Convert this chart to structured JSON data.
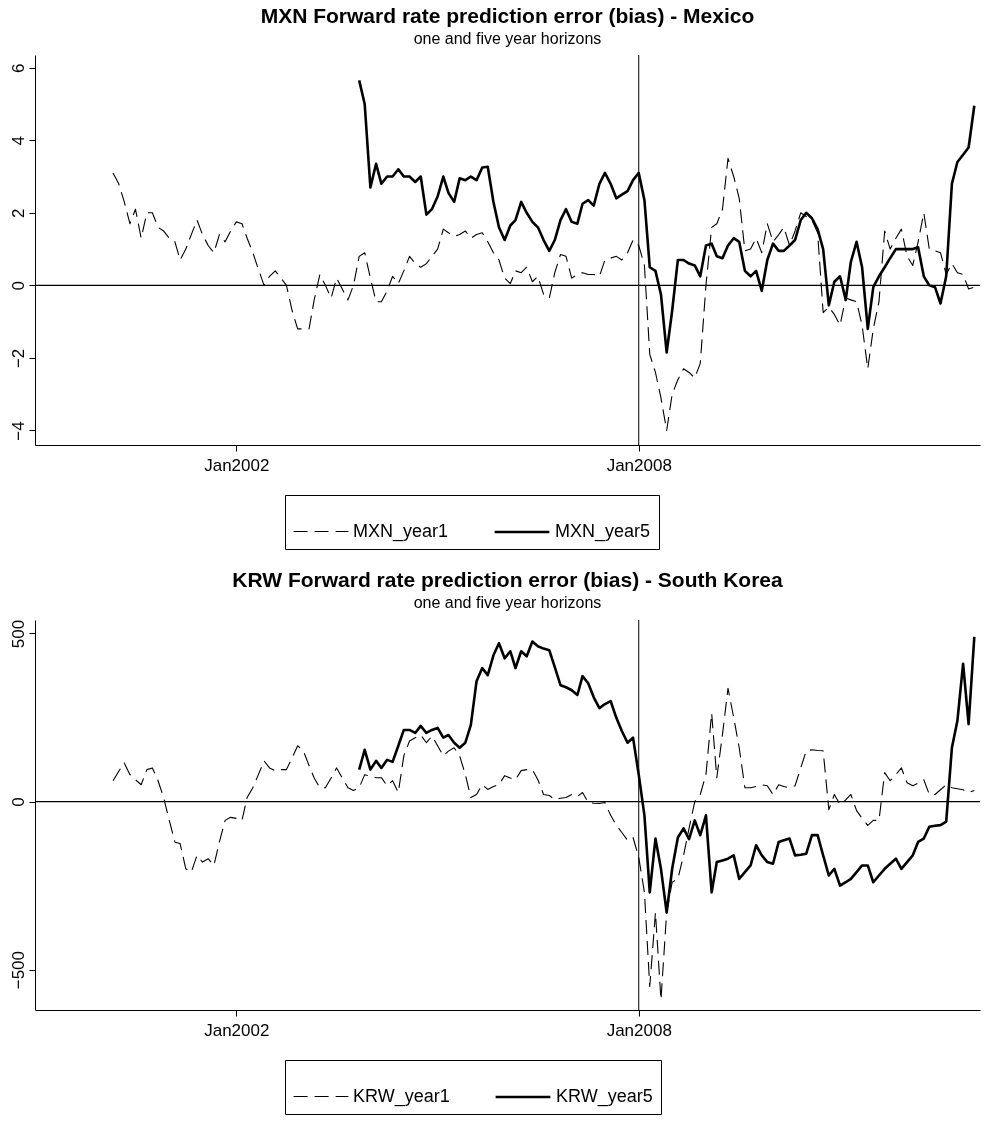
{
  "chart_data": [
    {
      "type": "line",
      "title": "MXN Forward rate prediction error (bias) - Mexico",
      "subtitle": "one and five year horizons",
      "x": [
        "2000-03",
        "2000-04",
        "2000-05",
        "2000-06",
        "2000-07",
        "2000-08",
        "2000-09",
        "2000-10",
        "2000-11",
        "2000-12",
        "2001-01",
        "2001-02",
        "2001-03",
        "2001-04",
        "2001-05",
        "2001-06",
        "2001-07",
        "2001-08",
        "2001-09",
        "2001-10",
        "2001-11",
        "2001-12",
        "2002-01",
        "2002-02",
        "2002-03",
        "2002-04",
        "2002-05",
        "2002-06",
        "2002-07",
        "2002-08",
        "2002-09",
        "2002-10",
        "2002-11",
        "2002-12",
        "2003-01",
        "2003-02",
        "2003-03",
        "2003-04",
        "2003-05",
        "2003-06",
        "2003-07",
        "2003-08",
        "2003-09",
        "2003-10",
        "2003-11",
        "2003-12",
        "2004-01",
        "2004-02",
        "2004-03",
        "2004-04",
        "2004-05",
        "2004-06",
        "2004-07",
        "2004-08",
        "2004-09",
        "2004-10",
        "2004-11",
        "2004-12",
        "2005-01",
        "2005-02",
        "2005-03",
        "2005-04",
        "2005-05",
        "2005-06",
        "2005-07",
        "2005-08",
        "2005-09",
        "2005-10",
        "2005-11",
        "2005-12",
        "2006-01",
        "2006-02",
        "2006-03",
        "2006-04",
        "2006-05",
        "2006-06",
        "2006-07",
        "2006-08",
        "2006-09",
        "2006-10",
        "2006-11",
        "2006-12",
        "2007-01",
        "2007-02",
        "2007-03",
        "2007-04",
        "2007-05",
        "2007-06",
        "2007-07",
        "2007-08",
        "2007-09",
        "2007-10",
        "2007-11",
        "2007-12",
        "2008-01",
        "2008-02",
        "2008-03",
        "2008-04",
        "2008-05",
        "2008-06",
        "2008-07",
        "2008-08",
        "2008-09",
        "2008-10",
        "2008-11",
        "2008-12",
        "2009-01",
        "2009-02",
        "2009-03",
        "2009-04",
        "2009-05",
        "2009-06",
        "2009-07",
        "2009-08",
        "2009-09",
        "2009-10",
        "2009-11",
        "2009-12",
        "2010-01",
        "2010-02",
        "2010-03",
        "2010-04",
        "2010-05",
        "2010-06",
        "2010-07",
        "2010-08",
        "2010-09",
        "2010-10",
        "2010-11",
        "2010-12",
        "2011-01",
        "2011-02",
        "2011-03",
        "2011-04",
        "2011-05",
        "2011-06",
        "2011-07",
        "2011-08",
        "2011-09",
        "2011-10",
        "2011-11",
        "2011-12",
        "2012-01",
        "2012-02",
        "2012-03",
        "2012-04",
        "2012-05",
        "2012-06",
        "2012-07",
        "2012-08",
        "2012-09",
        "2012-10",
        "2012-11",
        "2012-12",
        "2013-01"
      ],
      "xlim": [
        "1999-01",
        "2013-02"
      ],
      "xticks": [
        {
          "value": "2002-01",
          "label": "Jan2002"
        },
        {
          "value": "2008-01",
          "label": "Jan2008"
        }
      ],
      "ylim": [
        -4.4,
        6.35
      ],
      "yticks": [
        -4,
        -2,
        0,
        2,
        4,
        6
      ],
      "grid": false,
      "legend": "bottom",
      "ref_lines": [
        {
          "axis": "y",
          "value": 0
        },
        {
          "axis": "x",
          "value": "2008-01"
        }
      ],
      "series": [
        {
          "name": "MXN_year1",
          "color": "#000000",
          "line_style": "dashed",
          "values": [
            3.1,
            2.8,
            2.3,
            1.7,
            2.1,
            1.3,
            2.0,
            2.0,
            1.6,
            1.5,
            1.3,
            1.2,
            0.7,
            1.0,
            1.4,
            1.8,
            1.4,
            1.1,
            0.9,
            1.4,
            1.2,
            1.5,
            1.75,
            1.7,
            1.3,
            0.9,
            0.45,
            0.0,
            0.25,
            0.4,
            0.2,
            0,
            -0.7,
            -1.2,
            -1.2,
            -1.2,
            -0.4,
            0.3,
            0,
            -0.35,
            0.2,
            -0.1,
            -0.4,
            0,
            0.8,
            0.9,
            0.2,
            -0.45,
            -0.45,
            -0.15,
            0.25,
            0.05,
            0.4,
            0.8,
            0.6,
            0.5,
            0.6,
            0.8,
            1.0,
            1.55,
            1.45,
            1.35,
            1.4,
            1.5,
            1.3,
            1.4,
            1.45,
            1.2,
            0.9,
            0.7,
            0.2,
            0.05,
            0.4,
            0.35,
            0.5,
            0.1,
            0.25,
            -0.25,
            -0.35,
            0.35,
            0.85,
            0.8,
            0.2,
            0.3,
            0.35,
            0.3,
            0.3,
            0.25,
            0.7,
            0.75,
            0.8,
            0.7,
            0.9,
            1.25,
            1.1,
            0.55,
            -1.9,
            -2.4,
            -3.1,
            -4.0,
            -3.0,
            -2.6,
            -2.3,
            -2.4,
            -2.55,
            -2.15,
            0,
            1.6,
            1.7,
            2.1,
            3.5,
            3.0,
            2.4,
            0.95,
            1.0,
            1.3,
            0.9,
            1.7,
            1.2,
            1.4,
            1.6,
            1.1,
            1.5,
            2.0,
            1.9,
            1.8,
            1.45,
            -0.75,
            -0.6,
            -0.8,
            -1.1,
            -0.35,
            -0.4,
            -0.45,
            -1.1,
            -2.3,
            -1.2,
            -0.45,
            1.5,
            1.0,
            1.3,
            1.55,
            0.8,
            0.55,
            1.2,
            2.0,
            1.0,
            0.95,
            0.9,
            0.3,
            0.6,
            0.35,
            0.3,
            -0.1,
            -0.05
          ]
        },
        {
          "name": "MXN_year5",
          "color": "#000000",
          "line_style": "solid",
          "x": [
            "2003-11",
            "2003-12",
            "2004-01",
            "2004-02",
            "2004-03",
            "2004-04",
            "2004-05",
            "2004-06",
            "2004-07",
            "2004-08",
            "2004-09",
            "2004-10",
            "2004-11",
            "2004-12",
            "2005-01",
            "2005-02",
            "2005-03",
            "2005-04",
            "2005-05",
            "2005-06",
            "2005-07",
            "2005-08",
            "2005-09",
            "2005-10",
            "2005-11",
            "2005-12",
            "2006-01",
            "2006-02",
            "2006-03",
            "2006-04",
            "2006-05",
            "2006-06",
            "2006-07",
            "2006-08",
            "2006-09",
            "2006-10",
            "2006-11",
            "2006-12",
            "2007-01",
            "2007-02",
            "2007-03",
            "2007-04",
            "2007-05",
            "2007-06",
            "2007-07",
            "2007-08",
            "2007-09",
            "2007-10",
            "2007-11",
            "2007-12",
            "2008-01",
            "2008-02",
            "2008-03",
            "2008-04",
            "2008-05",
            "2008-06",
            "2008-07",
            "2008-08",
            "2008-09",
            "2008-10",
            "2008-11",
            "2008-12",
            "2009-01",
            "2009-02",
            "2009-03",
            "2009-04",
            "2009-05",
            "2009-06",
            "2009-07",
            "2009-08",
            "2009-09",
            "2009-10",
            "2009-11",
            "2009-12",
            "2010-01",
            "2010-02",
            "2010-03",
            "2010-04",
            "2010-05",
            "2010-06",
            "2010-07",
            "2010-08",
            "2010-09",
            "2010-10",
            "2010-11",
            "2010-12",
            "2011-01",
            "2011-02",
            "2011-03",
            "2011-04",
            "2011-05",
            "2011-06",
            "2011-07",
            "2011-08",
            "2011-09",
            "2011-10",
            "2011-11",
            "2011-12",
            "2012-01",
            "2012-02",
            "2012-03",
            "2012-04",
            "2012-05",
            "2012-06",
            "2012-07",
            "2012-08",
            "2012-09",
            "2012-10",
            "2012-11",
            "2012-12",
            "2013-01"
          ],
          "values": [
            5.65,
            5.0,
            2.7,
            3.35,
            2.8,
            3.0,
            3.0,
            3.2,
            3.0,
            3.0,
            2.85,
            3.0,
            1.95,
            2.1,
            2.45,
            3.0,
            2.55,
            2.3,
            2.95,
            2.9,
            3.0,
            2.9,
            3.25,
            3.27,
            2.3,
            1.6,
            1.25,
            1.65,
            1.8,
            2.3,
            2.0,
            1.75,
            1.6,
            1.25,
            0.95,
            1.25,
            1.8,
            2.1,
            1.75,
            1.7,
            2.25,
            2.35,
            2.2,
            2.8,
            3.1,
            2.8,
            2.4,
            2.5,
            2.6,
            2.9,
            3.1,
            2.35,
            0.5,
            0.4,
            -0.25,
            -1.85,
            -0.7,
            0.7,
            0.7,
            0.6,
            0.55,
            0.25,
            1.1,
            1.15,
            0.8,
            0.75,
            1.1,
            1.3,
            1.2,
            0.4,
            0.25,
            0.4,
            -0.15,
            0.7,
            1.15,
            0.95,
            0.95,
            1.1,
            1.25,
            1.8,
            2.0,
            1.85,
            1.55,
            1.0,
            -0.55,
            0.1,
            0.25,
            -0.4,
            0.65,
            1.2,
            0.5,
            -1.2,
            -0.05,
            0.25,
            0.5,
            0.75,
            1.0,
            1.0,
            1.0,
            1.0,
            1.05,
            0.25,
            0,
            -0.05,
            -0.5,
            0.25,
            2.8,
            3.4,
            3.6,
            3.8,
            4.95
          ]
        }
      ]
    },
    {
      "type": "line",
      "title": "KRW Forward rate prediction error (bias) - South Korea",
      "subtitle": "one and five year horizons",
      "x": [
        "2000-03",
        "2000-04",
        "2000-05",
        "2000-06",
        "2000-07",
        "2000-08",
        "2000-09",
        "2000-10",
        "2000-11",
        "2000-12",
        "2001-01",
        "2001-02",
        "2001-03",
        "2001-04",
        "2001-05",
        "2001-06",
        "2001-07",
        "2001-08",
        "2001-09",
        "2001-10",
        "2001-11",
        "2001-12",
        "2002-01",
        "2002-02",
        "2002-03",
        "2002-04",
        "2002-05",
        "2002-06",
        "2002-07",
        "2002-08",
        "2002-09",
        "2002-10",
        "2002-11",
        "2002-12",
        "2003-01",
        "2003-02",
        "2003-03",
        "2003-04",
        "2003-05",
        "2003-06",
        "2003-07",
        "2003-08",
        "2003-09",
        "2003-10",
        "2003-11",
        "2003-12",
        "2004-01",
        "2004-02",
        "2004-03",
        "2004-04",
        "2004-05",
        "2004-06",
        "2004-07",
        "2004-08",
        "2004-09",
        "2004-10",
        "2004-11",
        "2004-12",
        "2005-01",
        "2005-02",
        "2005-03",
        "2005-04",
        "2005-05",
        "2005-06",
        "2005-07",
        "2005-08",
        "2005-09",
        "2005-10",
        "2005-11",
        "2005-12",
        "2006-01",
        "2006-02",
        "2006-03",
        "2006-04",
        "2006-05",
        "2006-06",
        "2006-07",
        "2006-08",
        "2006-09",
        "2006-10",
        "2006-11",
        "2006-12",
        "2007-01",
        "2007-02",
        "2007-03",
        "2007-04",
        "2007-05",
        "2007-06",
        "2007-07",
        "2007-08",
        "2007-09",
        "2007-10",
        "2007-11",
        "2007-12",
        "2008-01",
        "2008-02",
        "2008-03",
        "2008-04",
        "2008-05",
        "2008-06",
        "2008-07",
        "2008-08",
        "2008-09",
        "2008-10",
        "2008-11",
        "2008-12",
        "2009-01",
        "2009-02",
        "2009-03",
        "2009-04",
        "2009-05",
        "2009-06",
        "2009-07",
        "2009-08",
        "2009-09",
        "2009-10",
        "2009-11",
        "2009-12",
        "2010-01",
        "2010-02",
        "2010-03",
        "2010-04",
        "2010-05",
        "2010-06",
        "2010-07",
        "2010-08",
        "2010-09",
        "2010-10",
        "2010-11",
        "2010-12",
        "2011-01",
        "2011-02",
        "2011-03",
        "2011-04",
        "2011-05",
        "2011-06",
        "2011-07",
        "2011-08",
        "2011-09",
        "2011-10",
        "2011-11",
        "2011-12",
        "2012-01",
        "2012-02",
        "2012-03",
        "2012-04",
        "2012-05",
        "2012-06",
        "2012-07",
        "2012-08",
        "2012-09",
        "2012-10",
        "2012-11",
        "2012-12",
        "2013-01"
      ],
      "xlim": [
        "1999-01",
        "2013-02"
      ],
      "xticks": [
        {
          "value": "2002-01",
          "label": "Jan2002"
        },
        {
          "value": "2008-01",
          "label": "Jan2008"
        }
      ],
      "ylim": [
        -620,
        540
      ],
      "yticks": [
        -500,
        0,
        500
      ],
      "grid": false,
      "legend": "bottom",
      "ref_lines": [
        {
          "axis": "y",
          "value": 0
        },
        {
          "axis": "x",
          "value": "2008-01"
        }
      ],
      "series": [
        {
          "name": "KRW_year1",
          "color": "#000000",
          "line_style": "dashed",
          "values": [
            62,
            90,
            115,
            80,
            65,
            50,
            95,
            100,
            62,
            12,
            -56,
            -121,
            -125,
            -200,
            -210,
            -160,
            -180,
            -170,
            -190,
            -120,
            -56,
            -47,
            -50,
            -56,
            12,
            41,
            80,
            121,
            100,
            92,
            95,
            95,
            130,
            166,
            151,
            107,
            70,
            41,
            41,
            70,
            100,
            70,
            41,
            33,
            41,
            80,
            75,
            71,
            71,
            47,
            62,
            27,
            136,
            180,
            190,
            198,
            175,
            195,
            166,
            136,
            150,
            160,
            136,
            80,
            12,
            21,
            50,
            36,
            45,
            50,
            77,
            70,
            65,
            92,
            95,
            95,
            65,
            21,
            18,
            6,
            10,
            12,
            21,
            15,
            27,
            -3,
            -5,
            -6,
            -3,
            -41,
            -70,
            -92,
            -115,
            -107,
            -166,
            -270,
            -550,
            -330,
            -590,
            -330,
            -240,
            -230,
            -160,
            -80,
            0,
            21,
            80,
            263,
            71,
            200,
            337,
            250,
            160,
            41,
            41,
            45,
            50,
            47,
            21,
            50,
            45,
            41,
            47,
            100,
            151,
            154,
            152,
            151,
            -24,
            21,
            -9,
            5,
            21,
            -27,
            -50,
            -71,
            -56,
            -56,
            86,
            62,
            80,
            100,
            56,
            47,
            55,
            65,
            21,
            21,
            35,
            50,
            41,
            38,
            35,
            27,
            33
          ]
        },
        {
          "name": "KRW_year5",
          "color": "#000000",
          "line_style": "solid",
          "x": [
            "2003-11",
            "2003-12",
            "2004-01",
            "2004-02",
            "2004-03",
            "2004-04",
            "2004-05",
            "2004-06",
            "2004-07",
            "2004-08",
            "2004-09",
            "2004-10",
            "2004-11",
            "2004-12",
            "2005-01",
            "2005-02",
            "2005-03",
            "2005-04",
            "2005-05",
            "2005-06",
            "2005-07",
            "2005-08",
            "2005-09",
            "2005-10",
            "2005-11",
            "2005-12",
            "2006-01",
            "2006-02",
            "2006-03",
            "2006-04",
            "2006-05",
            "2006-06",
            "2006-07",
            "2006-08",
            "2006-09",
            "2006-10",
            "2006-11",
            "2006-12",
            "2007-01",
            "2007-02",
            "2007-03",
            "2007-04",
            "2007-05",
            "2007-06",
            "2007-07",
            "2007-08",
            "2007-09",
            "2007-10",
            "2007-11",
            "2007-12",
            "2008-01",
            "2008-02",
            "2008-03",
            "2008-04",
            "2008-05",
            "2008-06",
            "2008-07",
            "2008-08",
            "2008-09",
            "2008-10",
            "2008-11",
            "2008-12",
            "2009-01",
            "2009-02",
            "2009-03",
            "2009-04",
            "2009-05",
            "2009-06",
            "2009-07",
            "2009-08",
            "2009-09",
            "2009-10",
            "2009-11",
            "2009-12",
            "2010-01",
            "2010-02",
            "2010-03",
            "2010-04",
            "2010-05",
            "2010-06",
            "2010-07",
            "2010-08",
            "2010-09",
            "2010-10",
            "2010-11",
            "2010-12",
            "2011-01",
            "2011-02",
            "2011-03",
            "2011-04",
            "2011-05",
            "2011-06",
            "2011-07",
            "2011-08",
            "2011-09",
            "2011-10",
            "2011-11",
            "2011-12",
            "2012-01",
            "2012-02",
            "2012-03",
            "2012-04",
            "2012-05",
            "2012-06",
            "2012-07",
            "2012-08",
            "2012-09",
            "2012-10",
            "2012-11",
            "2012-12",
            "2013-01"
          ],
          "values": [
            95,
            154,
            95,
            121,
            100,
            124,
            118,
            166,
            213,
            213,
            204,
            225,
            204,
            213,
            219,
            190,
            198,
            175,
            160,
            175,
            228,
            358,
            397,
            376,
            435,
            471,
            426,
            447,
            397,
            447,
            432,
            476,
            462,
            455,
            450,
            400,
            346,
            340,
            331,
            317,
            373,
            352,
            310,
            278,
            290,
            299,
            249,
            210,
            175,
            190,
            80,
            -41,
            -270,
            -110,
            -200,
            -330,
            -200,
            -107,
            -80,
            -112,
            -56,
            -100,
            -41,
            -270,
            -180,
            -175,
            -170,
            -160,
            -230,
            -210,
            -190,
            -130,
            -160,
            -180,
            -185,
            -120,
            -115,
            -110,
            -160,
            -158,
            -155,
            -100,
            -100,
            -160,
            -220,
            -200,
            -250,
            -240,
            -230,
            -210,
            -190,
            -190,
            -240,
            -220,
            -200,
            -185,
            -170,
            -200,
            -180,
            -160,
            -120,
            -110,
            -75,
            -72,
            -70,
            -60,
            160,
            240,
            410,
            230,
            490
          ]
        }
      ]
    }
  ]
}
